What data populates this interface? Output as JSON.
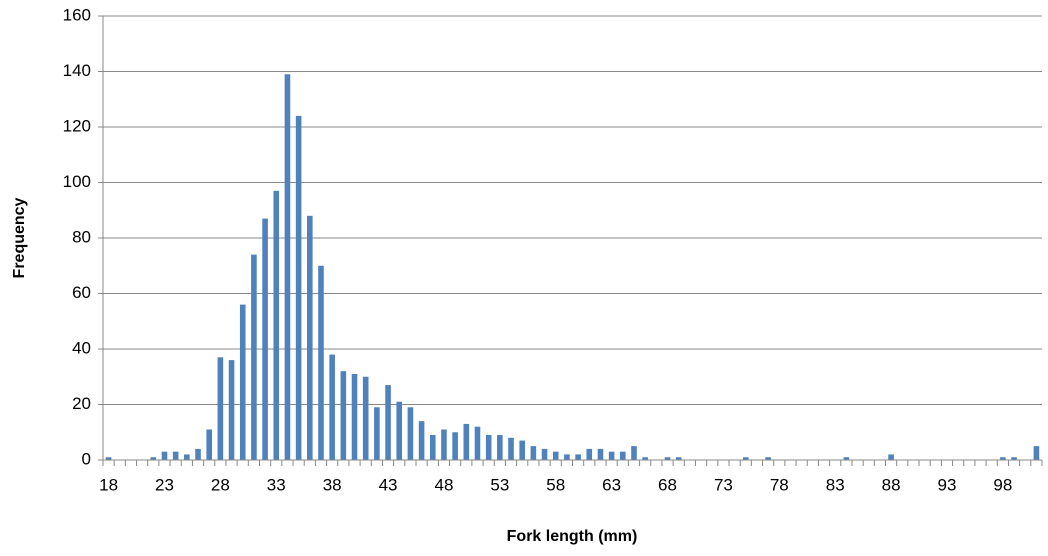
{
  "chart_data": {
    "type": "bar",
    "x_label": "Fork length (mm)",
    "y_label": "Frequency",
    "categories": [
      "18",
      null,
      null,
      null,
      null,
      "23",
      null,
      null,
      null,
      null,
      "28",
      null,
      null,
      null,
      null,
      "33",
      null,
      null,
      null,
      null,
      "38",
      null,
      null,
      null,
      null,
      "43",
      null,
      null,
      null,
      null,
      "48",
      null,
      null,
      null,
      null,
      "53",
      null,
      null,
      null,
      null,
      "58",
      null,
      null,
      null,
      null,
      "63",
      null,
      null,
      null,
      null,
      "68",
      null,
      null,
      null,
      null,
      "73",
      null,
      null,
      null,
      null,
      "78",
      null,
      null,
      null,
      null,
      "83",
      null,
      null,
      null,
      null,
      "88",
      null,
      null,
      null,
      null,
      "93",
      null,
      null,
      null,
      null,
      "98",
      null,
      null,
      null
    ],
    "values": [
      1,
      0,
      0,
      0,
      1,
      3,
      3,
      2,
      4,
      11,
      37,
      36,
      56,
      74,
      87,
      97,
      139,
      124,
      88,
      70,
      38,
      32,
      31,
      30,
      19,
      27,
      21,
      19,
      14,
      9,
      11,
      10,
      13,
      12,
      9,
      9,
      8,
      7,
      5,
      4,
      3,
      2,
      2,
      4,
      4,
      3,
      3,
      5,
      1,
      0,
      1,
      1,
      0,
      0,
      0,
      0,
      0,
      1,
      0,
      1,
      0,
      0,
      0,
      0,
      0,
      0,
      1,
      0,
      0,
      0,
      2,
      0,
      0,
      0,
      0,
      0,
      0,
      0,
      0,
      0,
      1,
      1,
      0,
      5
    ],
    "color": "#4f81bd",
    "ylim": [
      0,
      160
    ],
    "yticks": [
      0,
      20,
      40,
      60,
      80,
      100,
      120,
      140,
      160
    ],
    "grid": true
  }
}
